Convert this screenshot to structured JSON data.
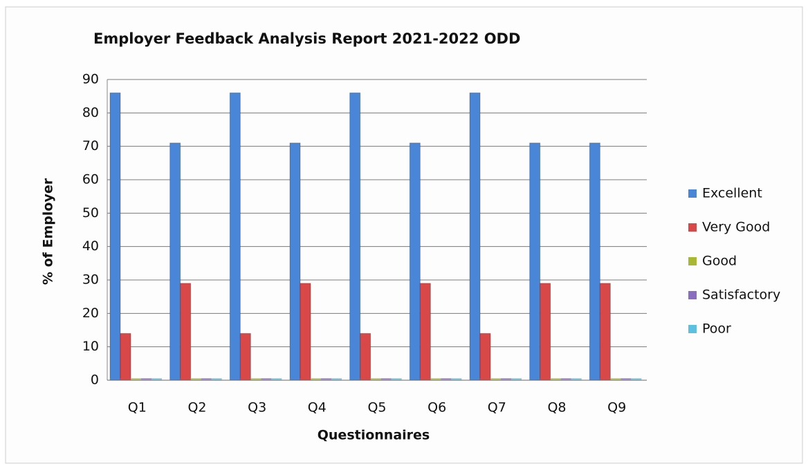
{
  "chart_data": {
    "type": "bar",
    "title": "Employer Feedback Analysis Report 2021-2022 ODD",
    "x_label": "Questionnaires",
    "y_label": "% of Employer",
    "categories": [
      "Q1",
      "Q2",
      "Q3",
      "Q4",
      "Q5",
      "Q6",
      "Q7",
      "Q8",
      "Q9"
    ],
    "series": [
      {
        "name": "Excellent",
        "color": "#4a86d8",
        "values": [
          86,
          71,
          86,
          71,
          86,
          71,
          86,
          71,
          71
        ]
      },
      {
        "name": "Very Good",
        "color": "#d84848",
        "values": [
          14,
          29,
          14,
          29,
          14,
          29,
          14,
          29,
          29
        ]
      },
      {
        "name": "Good",
        "color": "#a8b832",
        "values": [
          0,
          0,
          0,
          0,
          0,
          0,
          0,
          0,
          0
        ]
      },
      {
        "name": "Satisfactory",
        "color": "#8a6cc0",
        "values": [
          0,
          0,
          0,
          0,
          0,
          0,
          0,
          0,
          0
        ]
      },
      {
        "name": "Poor",
        "color": "#5cc0e0",
        "values": [
          0,
          0,
          0,
          0,
          0,
          0,
          0,
          0,
          0
        ]
      }
    ],
    "ylim": [
      0,
      90
    ],
    "yticks": [
      0,
      10,
      20,
      30,
      40,
      50,
      60,
      70,
      80,
      90
    ],
    "grid": true,
    "legend": "right"
  }
}
